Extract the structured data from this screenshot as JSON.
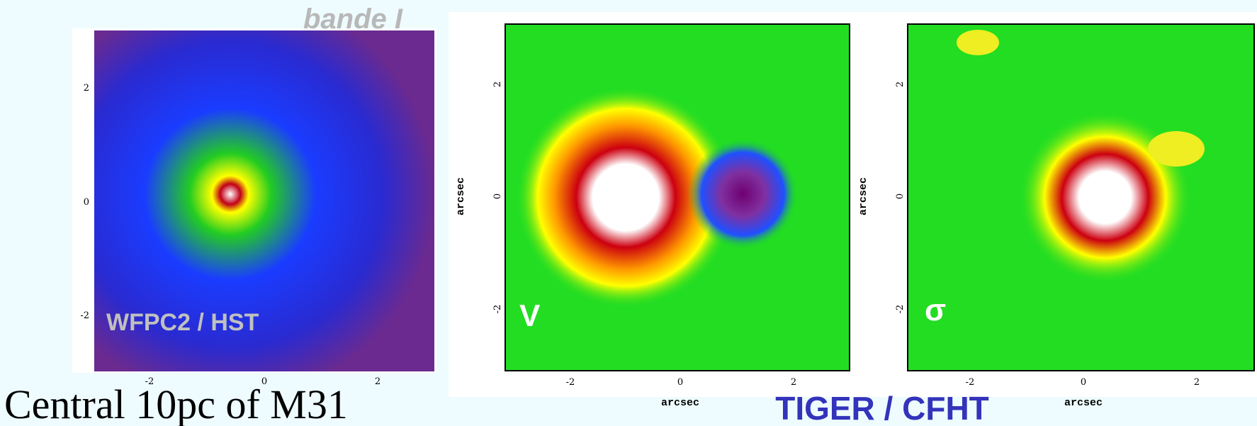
{
  "slide": {
    "band_label": "bande I",
    "caption": "Central 10pc of M31",
    "instrument_right": "TIGER / CFHT",
    "panels": [
      {
        "label": "WFPC2 / HST",
        "xticks": [
          "-2",
          "0",
          "2"
        ],
        "yticks": [
          "2",
          "0",
          "-2"
        ]
      },
      {
        "label": "V",
        "xlabel": "arcsec",
        "ylabel": "arcsec",
        "xticks": [
          "-2",
          "0",
          "2"
        ],
        "yticks": [
          "2",
          "0",
          "-2"
        ]
      },
      {
        "label": "σ",
        "xlabel": "arcsec",
        "ylabel": "arcsec",
        "xticks": [
          "-2",
          "0",
          "2"
        ],
        "yticks": [
          "2",
          "0",
          "-2"
        ]
      }
    ]
  }
}
